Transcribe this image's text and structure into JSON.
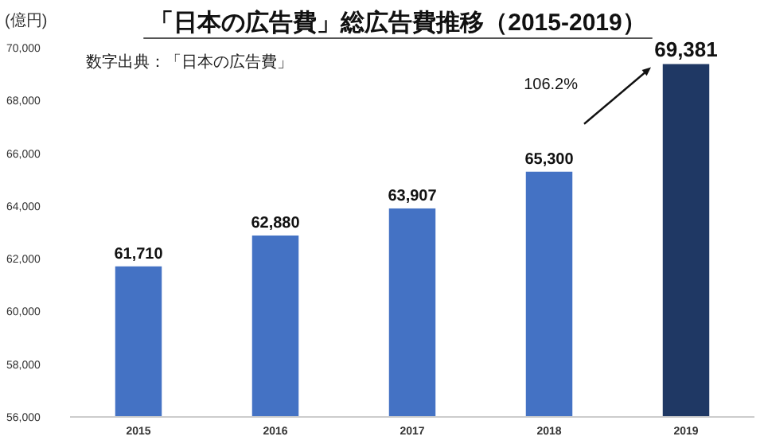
{
  "chart_data": {
    "type": "bar",
    "title": "「日本の広告費」総広告費推移（2015-2019）",
    "ylabel": "(億円)",
    "annotations": [
      "数字出典：「日本の広告費」",
      "106.2%"
    ],
    "categories": [
      "2015",
      "2016",
      "2017",
      "2018",
      "2019"
    ],
    "values": [
      61710,
      62880,
      63907,
      65300,
      69381
    ],
    "colors": [
      "#4472c4",
      "#4472c4",
      "#4472c4",
      "#4472c4",
      "#1f3864"
    ],
    "value_labels": [
      "61,710",
      "62,880",
      "63,907",
      "65,300",
      "69,381"
    ],
    "ylim": [
      56000,
      70000
    ],
    "yticks": [
      {
        "value": 56000,
        "label": "56,000"
      },
      {
        "value": 58000,
        "label": "58,000"
      },
      {
        "value": 60000,
        "label": "60,000"
      },
      {
        "value": 62000,
        "label": "62,000"
      },
      {
        "value": 64000,
        "label": "64,000"
      },
      {
        "value": 66000,
        "label": "66,000"
      },
      {
        "value": 68000,
        "label": "68,000"
      },
      {
        "value": 70000,
        "label": "70,000"
      }
    ],
    "grid": false
  }
}
